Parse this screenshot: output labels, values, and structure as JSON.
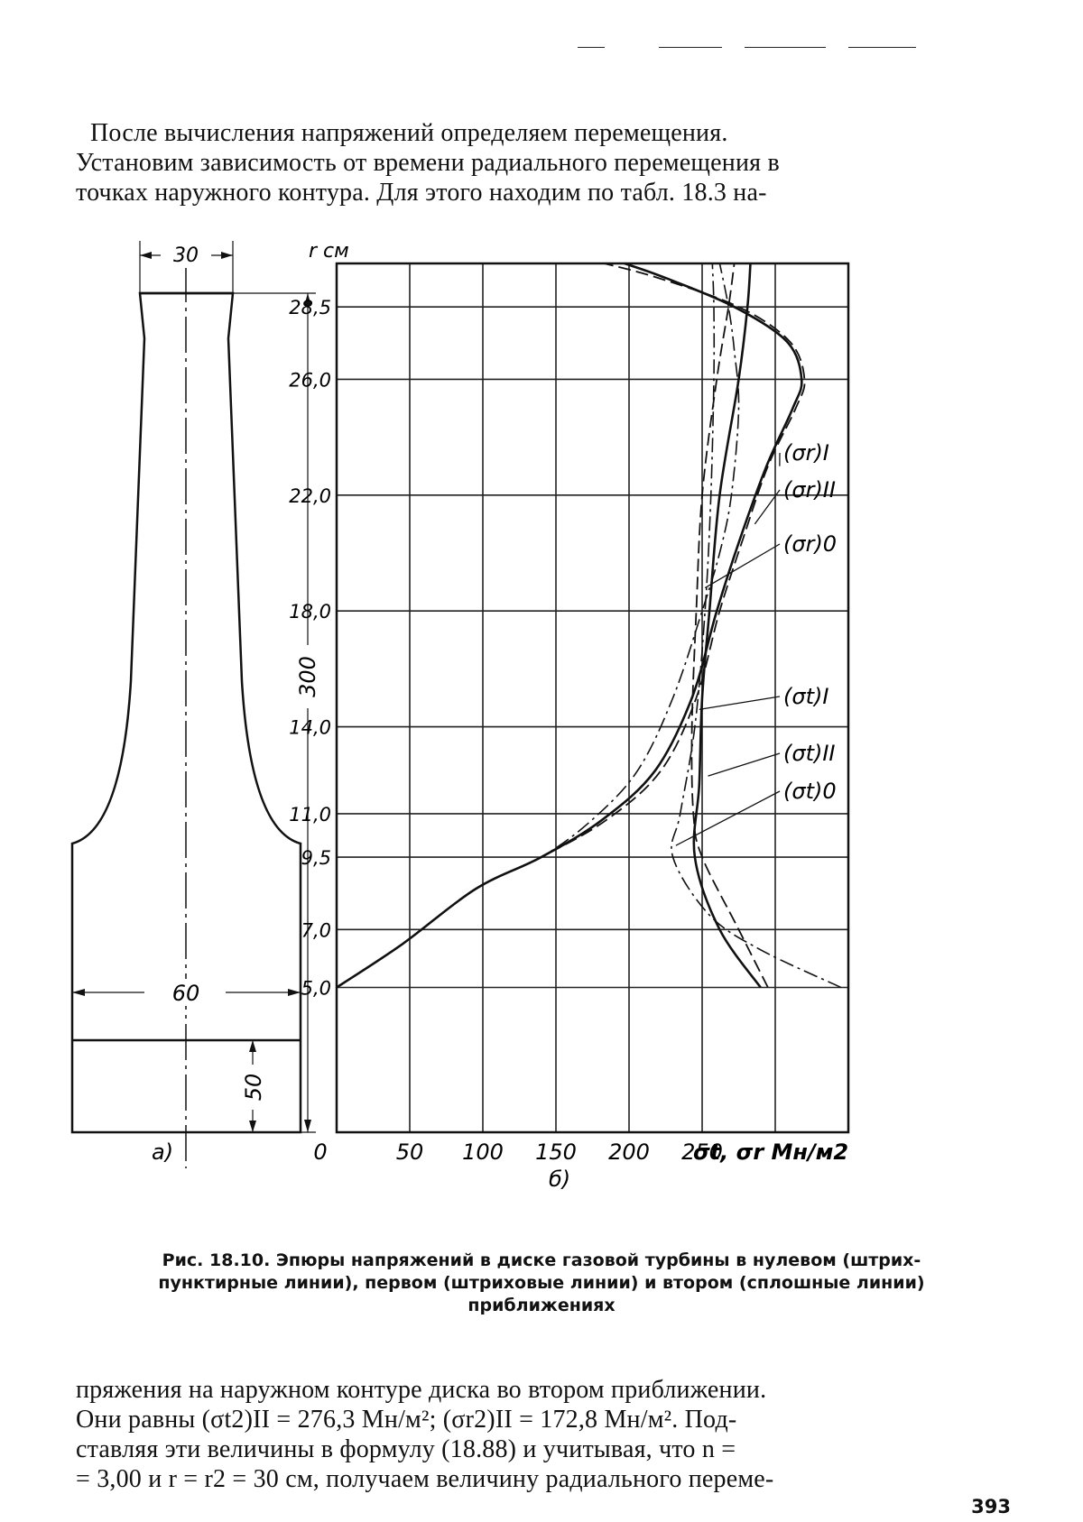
{
  "page_number": "393",
  "text_top": [
    "После вычисления напряжений определяем перемещения.",
    "Установим зависимость от времени радиального перемещения в",
    "точках наружного контура. Для этого находим по табл. 18.3 на-"
  ],
  "text_bottom": [
    "пряжения на наружном контуре диска во втором приближении.",
    "Они равны (σt2)II = 276,3 Мн/м²; (σr2)II = 172,8 Мн/м². Под-",
    "ставляя эти величины в формулу (18.88) и учитывая, что n =",
    "= 3,00 и r = r2 = 30 см, получаем величину радиального переме-"
  ],
  "caption": [
    "Рис. 18.10. Эпюры напряжений в диске газовой турбины в нулевом (штрих-",
    "пунктирные линии), первом (штриховые линии) и втором (сплошные линии)",
    "приближениях"
  ],
  "figure": {
    "panel_a_label": "а)",
    "panel_b_label": "б)",
    "dim_top": "30",
    "dim_width": "60",
    "dim_hub": "50",
    "dim_height": "300",
    "y_axis_unit": "r см",
    "x_axis_unit": "σt, σr Мн/м2"
  },
  "chart_data": {
    "type": "line",
    "title": "",
    "xlabel": "σt, σr Мн/м2",
    "ylabel": "r см",
    "xlim": [
      0,
      350
    ],
    "ylim": [
      0,
      30
    ],
    "x_ticks": [
      0,
      50,
      100,
      150,
      200,
      250
    ],
    "x_tick_labels": [
      "0",
      "50",
      "100",
      "150",
      "200",
      "250"
    ],
    "y_ticks": [
      5.0,
      7.0,
      9.5,
      11.0,
      14.0,
      18.0,
      22.0,
      26.0,
      28.5
    ],
    "y_tick_labels": [
      "5,0",
      "7,0",
      "9,5",
      "11,0",
      "14,0",
      "18,0",
      "22,0",
      "26,0",
      "28,5"
    ],
    "grid": true,
    "series": [
      {
        "name": "(σr)I",
        "style": "dashed",
        "points": [
          [
            0,
            5
          ],
          [
            45,
            6.5
          ],
          [
            95,
            8.4
          ],
          [
            140,
            9.5
          ],
          [
            185,
            10.8
          ],
          [
            222,
            12.5
          ],
          [
            246,
            15
          ],
          [
            262,
            18
          ],
          [
            278,
            20.5
          ],
          [
            295,
            23
          ],
          [
            314,
            25
          ],
          [
            320,
            26
          ],
          [
            310,
            27.3
          ],
          [
            275,
            28.5
          ],
          [
            220,
            29.5
          ],
          [
            183,
            30
          ]
        ]
      },
      {
        "name": "(σr)II",
        "style": "solid",
        "points": [
          [
            0,
            5
          ],
          [
            45,
            6.5
          ],
          [
            95,
            8.4
          ],
          [
            140,
            9.5
          ],
          [
            182,
            10.8
          ],
          [
            218,
            12.5
          ],
          [
            243,
            15
          ],
          [
            260,
            18
          ],
          [
            276,
            20.5
          ],
          [
            294,
            23
          ],
          [
            312,
            25
          ],
          [
            318,
            26
          ],
          [
            308,
            27.3
          ],
          [
            272,
            28.5
          ],
          [
            225,
            29.5
          ],
          [
            197,
            30
          ]
        ]
      },
      {
        "name": "(σr)0",
        "style": "dash-dot",
        "points": [
          [
            0,
            5
          ],
          [
            45,
            6.5
          ],
          [
            95,
            8.4
          ],
          [
            140,
            9.5
          ],
          [
            175,
            10.8
          ],
          [
            206,
            12.5
          ],
          [
            230,
            15
          ],
          [
            250,
            18
          ],
          [
            262,
            20
          ],
          [
            270,
            22
          ],
          [
            275,
            25
          ],
          [
            272,
            27
          ],
          [
            268,
            28.5
          ],
          [
            262,
            30
          ]
        ]
      },
      {
        "name": "(σt)I",
        "style": "dashed",
        "points": [
          [
            295,
            5
          ],
          [
            275,
            7
          ],
          [
            250,
            9.5
          ],
          [
            244,
            11
          ],
          [
            243,
            14
          ],
          [
            246,
            18
          ],
          [
            250,
            22
          ],
          [
            260,
            26
          ],
          [
            268,
            28.5
          ],
          [
            272,
            30
          ]
        ]
      },
      {
        "name": "(σt)II",
        "style": "solid",
        "points": [
          [
            290,
            5
          ],
          [
            262,
            7
          ],
          [
            245,
            9.5
          ],
          [
            248,
            12
          ],
          [
            250,
            15
          ],
          [
            255,
            18
          ],
          [
            262,
            22
          ],
          [
            275,
            26
          ],
          [
            281,
            28.5
          ],
          [
            283,
            30
          ]
        ]
      },
      {
        "name": "(σt)0",
        "style": "dash-dot",
        "points": [
          [
            345,
            5
          ],
          [
            290,
            6.3
          ],
          [
            255,
            7.5
          ],
          [
            230,
            9.5
          ],
          [
            235,
            11
          ],
          [
            245,
            14
          ],
          [
            252,
            18
          ],
          [
            256,
            22
          ],
          [
            258,
            26
          ],
          [
            258,
            28.5
          ],
          [
            257,
            30
          ]
        ]
      }
    ]
  }
}
